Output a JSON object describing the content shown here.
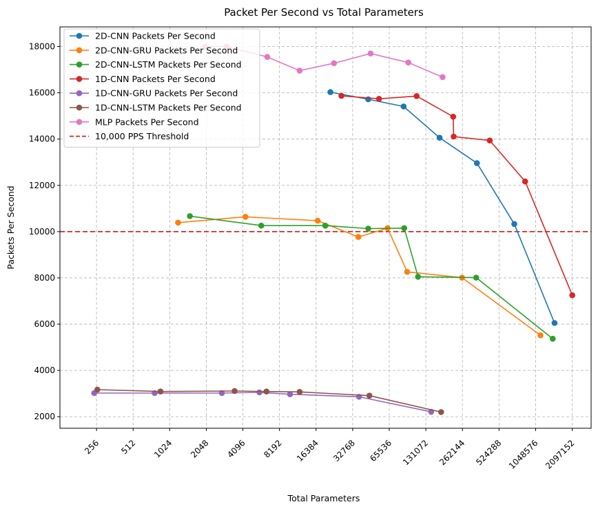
{
  "chart_data": {
    "type": "line",
    "title": "Packet Per Second vs Total Parameters",
    "xlabel": "Total Parameters",
    "ylabel": "Packets Per Second",
    "x_scale": "log2",
    "xlim": [
      128,
      3000000
    ],
    "ylim": [
      1500,
      18850
    ],
    "xticks": [
      256,
      512,
      1024,
      2048,
      4096,
      8192,
      16384,
      32768,
      65536,
      131072,
      262144,
      524288,
      1048576,
      2097152
    ],
    "xtick_labels": [
      "256",
      "512",
      "1024",
      "2048",
      "4096",
      "8192",
      "16384",
      "32768",
      "65536",
      "131072",
      "262144",
      "524288",
      "1048576",
      "2097152"
    ],
    "yticks": [
      2000,
      4000,
      6000,
      8000,
      10000,
      12000,
      14000,
      16000,
      18000
    ],
    "ytick_labels": [
      "2000",
      "4000",
      "6000",
      "8000",
      "10000",
      "12000",
      "14000",
      "16000",
      "18000"
    ],
    "grid": true,
    "legend_position": "top-left",
    "series": [
      {
        "name": "2D-CNN Packets Per Second",
        "color": "#1f77b4",
        "x": [
          21500,
          44000,
          86000,
          170000,
          345000,
          700000,
          1500000
        ],
        "y": [
          16030,
          15720,
          15410,
          14060,
          12960,
          10330,
          6050
        ]
      },
      {
        "name": "2D-CNN-GRU Packets Per Second",
        "color": "#ff7f0e",
        "x": [
          1200,
          4300,
          16900,
          36500,
          63500,
          92000,
          260000,
          1150000
        ],
        "y": [
          10390,
          10640,
          10470,
          9770,
          10150,
          8260,
          8010,
          5520
        ]
      },
      {
        "name": "2D-CNN-LSTM Packets Per Second",
        "color": "#2ca02c",
        "x": [
          1500,
          5800,
          19500,
          44000,
          87000,
          113000,
          340000,
          1450000
        ],
        "y": [
          10670,
          10260,
          10260,
          10130,
          10150,
          8050,
          8010,
          5370
        ]
      },
      {
        "name": "1D-CNN Packets Per Second",
        "color": "#d62728",
        "x": [
          26500,
          54000,
          110000,
          220000,
          222000,
          440000,
          860000,
          2100000
        ],
        "y": [
          15870,
          15740,
          15860,
          14970,
          14110,
          13940,
          12170,
          7250
        ]
      },
      {
        "name": "1D-CNN-GRU Packets Per Second",
        "color": "#9467bd",
        "x": [
          245,
          770,
          2750,
          5600,
          10000,
          37000,
          145000
        ],
        "y": [
          3020,
          3020,
          3020,
          3050,
          2970,
          2860,
          2210
        ]
      },
      {
        "name": "1D-CNN-LSTM Packets Per Second",
        "color": "#8c564b",
        "x": [
          260,
          860,
          3500,
          6400,
          12000,
          45000,
          175000
        ],
        "y": [
          3170,
          3090,
          3110,
          3090,
          3070,
          2910,
          2200
        ]
      },
      {
        "name": "MLP Packets Per Second",
        "color": "#e377c2",
        "x": [
          2000,
          3000,
          6500,
          12000,
          23000,
          46000,
          94000,
          180000
        ],
        "y": [
          18000,
          18000,
          17550,
          16960,
          17280,
          17700,
          17310,
          16680
        ]
      }
    ],
    "threshold": {
      "name": "10,000 PPS Threshold",
      "y": 10000,
      "color": "#d62728",
      "style": "dashed"
    }
  }
}
